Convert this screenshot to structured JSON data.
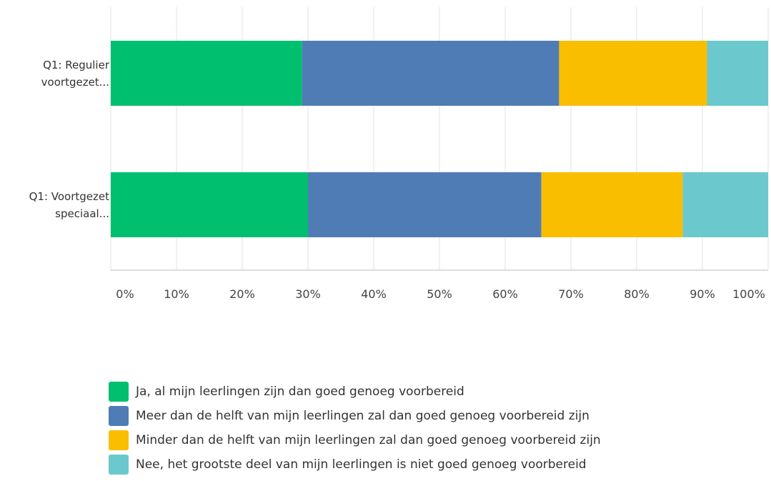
{
  "chart_data": {
    "type": "stacked_barh",
    "categories": [
      "Q1: Regulier voortgezet...",
      "Q1: Voortgezet speciaal..."
    ],
    "series": [
      {
        "name": "Ja, al mijn leerlingen zijn dan goed genoeg voorbereid",
        "color": "#00bf6f",
        "values": [
          29.1,
          30.0
        ]
      },
      {
        "name": "Meer dan de helft van mijn leerlingen zal dan goed genoeg voorbereid zijn",
        "color": "#507cb6",
        "values": [
          39.1,
          35.5
        ]
      },
      {
        "name": "Minder dan de helft van mijn leerlingen zal dan goed genoeg voorbereid zijn",
        "color": "#f9be00",
        "values": [
          22.5,
          21.5
        ]
      },
      {
        "name": "Nee, het grootste deel van mijn leerlingen is niet goed genoeg voorbereid",
        "color": "#6bc8cd",
        "values": [
          9.3,
          13.0
        ]
      }
    ],
    "xlim": [
      0,
      100
    ],
    "xticks": [
      {
        "value": 0,
        "label": "0%"
      },
      {
        "value": 10,
        "label": "10%"
      },
      {
        "value": 20,
        "label": "20%"
      },
      {
        "value": 30,
        "label": "30%"
      },
      {
        "value": 40,
        "label": "40%"
      },
      {
        "value": 50,
        "label": "50%"
      },
      {
        "value": 60,
        "label": "60%"
      },
      {
        "value": 70,
        "label": "70%"
      },
      {
        "value": 80,
        "label": "80%"
      },
      {
        "value": 90,
        "label": "90%"
      },
      {
        "value": 100,
        "label": "100%"
      }
    ],
    "grid": true
  }
}
